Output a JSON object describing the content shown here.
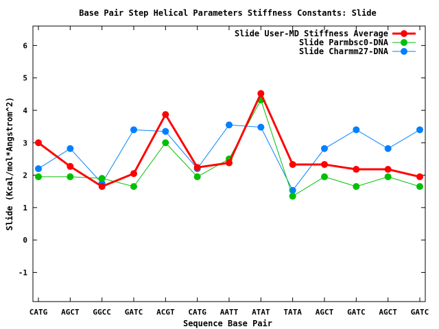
{
  "chart_data": {
    "type": "line",
    "title": "Base Pair Step Helical Parameters Stiffness Constants: Slide",
    "xlabel": "Sequence Base Pair",
    "ylabel": "Slide (Kcal/mol*Angstrom^2)",
    "ylim": [
      -1.9,
      6.6
    ],
    "yticks": [
      "-1",
      "0",
      "1",
      "2",
      "3",
      "4",
      "5",
      "6"
    ],
    "categories": [
      "CATG",
      "AGCT",
      "GGCC",
      "GATC",
      "ACGT",
      "CATG",
      "AATT",
      "ATAT",
      "TATA",
      "AGCT",
      "GATC",
      "AGCT",
      "GATC"
    ],
    "grid": false,
    "legend_position": "top-right",
    "series": [
      {
        "name": "Slide User-MD Stiffness Average",
        "color": "#ff0000",
        "values": [
          3.0,
          2.27,
          1.65,
          2.05,
          3.87,
          2.24,
          2.38,
          4.52,
          2.33,
          2.33,
          2.18,
          2.18,
          1.95
        ]
      },
      {
        "name": "Slide Parmbsc0-DNA",
        "color": "#00c000",
        "values": [
          1.95,
          1.95,
          1.9,
          1.65,
          3.0,
          1.95,
          2.5,
          4.32,
          1.35,
          1.95,
          1.65,
          1.95,
          1.65
        ]
      },
      {
        "name": "Slide Charmm27-DNA",
        "color": "#0080ff",
        "values": [
          2.2,
          2.82,
          1.75,
          3.4,
          3.35,
          2.2,
          3.55,
          3.48,
          1.53,
          2.82,
          3.4,
          2.82,
          3.4
        ]
      }
    ]
  }
}
